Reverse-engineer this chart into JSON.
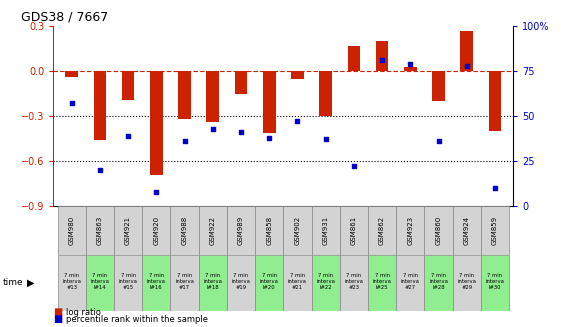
{
  "title": "GDS38 / 7667",
  "samples": [
    "GSM980",
    "GSM863",
    "GSM921",
    "GSM920",
    "GSM988",
    "GSM922",
    "GSM989",
    "GSM858",
    "GSM902",
    "GSM931",
    "GSM861",
    "GSM862",
    "GSM923",
    "GSM860",
    "GSM924",
    "GSM859"
  ],
  "intervals": [
    "7 min\ninterva\n#13",
    "7 min\ninterva\nl#14",
    "7 min\ninterva\n#15",
    "7 min\ninterva\nl#16",
    "7 min\ninterva\n#17",
    "7 min\ninterva\nl#18",
    "7 min\ninterva\n#19",
    "7 min\ninterva\nl#20",
    "7 min\ninterva\n#21",
    "7 min\ninterva\nl#22",
    "7 min\ninterva\n#23",
    "7 min\ninterva\nl#25",
    "7 min\ninterva\n#27",
    "7 min\ninterva\nl#28",
    "7 min\ninterva\n#29",
    "7 min\ninterva\nl#30"
  ],
  "log_ratio": [
    -0.04,
    -0.46,
    -0.19,
    -0.69,
    -0.32,
    -0.34,
    -0.15,
    -0.41,
    -0.05,
    -0.3,
    0.17,
    0.2,
    0.03,
    -0.2,
    0.27,
    -0.4
  ],
  "percentile_vals": [
    57,
    20,
    39,
    8,
    36,
    43,
    41,
    38,
    47,
    37,
    22,
    81,
    79,
    36,
    78,
    10
  ],
  "bar_color": "#cc2200",
  "dot_color": "#0000cc",
  "bg_color_gray": "#d3d3d3",
  "bg_color_green": "#90ee90",
  "ylim_left": [
    -0.9,
    0.3
  ],
  "ylim_right": [
    0,
    100
  ],
  "yticks_left": [
    -0.9,
    -0.6,
    -0.3,
    0.0,
    0.3
  ],
  "yticks_right": [
    0,
    25,
    50,
    75,
    100
  ],
  "interval_colors": [
    0,
    1,
    0,
    1,
    0,
    1,
    0,
    1,
    0,
    1,
    0,
    1,
    0,
    1,
    0,
    1
  ]
}
